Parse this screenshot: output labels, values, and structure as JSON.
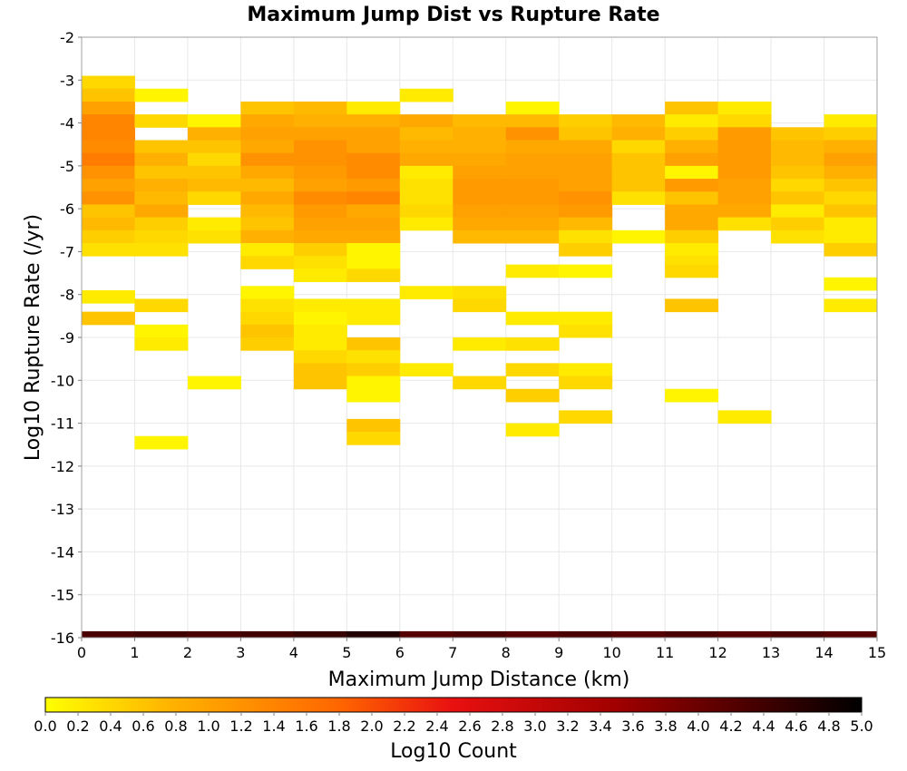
{
  "chart_data": {
    "type": "heatmap",
    "title": "Maximum Jump Dist vs Rupture Rate",
    "xlabel": "Maximum Jump Distance (km)",
    "ylabel": "Log10 Rupture Rate (/yr)",
    "colorbar_label": "Log10 Count",
    "xlim": [
      0,
      15
    ],
    "ylim": [
      -16,
      -2
    ],
    "x_ticks": [
      "0",
      "1",
      "2",
      "3",
      "4",
      "5",
      "6",
      "7",
      "8",
      "9",
      "10",
      "11",
      "12",
      "13",
      "14",
      "15"
    ],
    "y_ticks": [
      "-2",
      "-3",
      "-4",
      "-5",
      "-6",
      "-7",
      "-8",
      "-9",
      "-10",
      "-11",
      "-12",
      "-13",
      "-14",
      "-15",
      "-16"
    ],
    "colorbar_ticks": [
      "0.0",
      "0.2",
      "0.4",
      "0.6",
      "0.8",
      "1.0",
      "1.2",
      "1.4",
      "1.6",
      "1.8",
      "2.0",
      "2.2",
      "2.4",
      "2.6",
      "2.8",
      "3.0",
      "3.2",
      "3.4",
      "3.6",
      "3.8",
      "4.0",
      "4.2",
      "4.4",
      "4.6",
      "4.8",
      "5.0"
    ],
    "color_range": [
      0.0,
      5.0
    ],
    "colormap": [
      "#ffff00",
      "#ffb000",
      "#ff6600",
      "#e81010",
      "#a00000",
      "#400000",
      "#000000"
    ],
    "grid": true,
    "x_bin_width": 1,
    "y_bin_height": 0.3,
    "cells": [
      {
        "x": 0,
        "y": -3.05,
        "v": 0.4
      },
      {
        "x": 0,
        "y": -3.35,
        "v": 0.6
      },
      {
        "x": 0,
        "y": -3.65,
        "v": 1.0
      },
      {
        "x": 0,
        "y": -3.95,
        "v": 1.4
      },
      {
        "x": 0,
        "y": -4.25,
        "v": 1.4
      },
      {
        "x": 0,
        "y": -4.55,
        "v": 1.3
      },
      {
        "x": 0,
        "y": -4.85,
        "v": 1.5
      },
      {
        "x": 0,
        "y": -5.15,
        "v": 1.2
      },
      {
        "x": 0,
        "y": -5.45,
        "v": 1.0
      },
      {
        "x": 0,
        "y": -5.75,
        "v": 1.2
      },
      {
        "x": 0,
        "y": -6.05,
        "v": 0.6
      },
      {
        "x": 0,
        "y": -6.35,
        "v": 0.7
      },
      {
        "x": 0,
        "y": -6.65,
        "v": 0.5
      },
      {
        "x": 0,
        "y": -6.95,
        "v": 0.3
      },
      {
        "x": 0,
        "y": -8.05,
        "v": 0.2
      },
      {
        "x": 0,
        "y": -8.55,
        "v": 0.6
      },
      {
        "x": 1,
        "y": -3.35,
        "v": 0.1
      },
      {
        "x": 1,
        "y": -3.95,
        "v": 0.4
      },
      {
        "x": 1,
        "y": -4.55,
        "v": 0.6
      },
      {
        "x": 1,
        "y": -4.85,
        "v": 0.8
      },
      {
        "x": 1,
        "y": -5.15,
        "v": 0.6
      },
      {
        "x": 1,
        "y": -5.45,
        "v": 0.8
      },
      {
        "x": 1,
        "y": -5.75,
        "v": 0.7
      },
      {
        "x": 1,
        "y": -6.05,
        "v": 0.9
      },
      {
        "x": 1,
        "y": -6.35,
        "v": 0.5
      },
      {
        "x": 1,
        "y": -6.65,
        "v": 0.4
      },
      {
        "x": 1,
        "y": -6.95,
        "v": 0.3
      },
      {
        "x": 1,
        "y": -8.25,
        "v": 0.4
      },
      {
        "x": 1,
        "y": -8.85,
        "v": 0.1
      },
      {
        "x": 1,
        "y": -9.15,
        "v": 0.2
      },
      {
        "x": 1,
        "y": -11.45,
        "v": 0.1
      },
      {
        "x": 2,
        "y": -3.95,
        "v": 0.1
      },
      {
        "x": 2,
        "y": -4.25,
        "v": 0.8
      },
      {
        "x": 2,
        "y": -4.55,
        "v": 0.6
      },
      {
        "x": 2,
        "y": -4.85,
        "v": 0.4
      },
      {
        "x": 2,
        "y": -5.15,
        "v": 0.6
      },
      {
        "x": 2,
        "y": -5.45,
        "v": 0.7
      },
      {
        "x": 2,
        "y": -5.75,
        "v": 0.4
      },
      {
        "x": 2,
        "y": -6.35,
        "v": 0.2
      },
      {
        "x": 2,
        "y": -6.65,
        "v": 0.3
      },
      {
        "x": 2,
        "y": -10.05,
        "v": 0.1
      },
      {
        "x": 3,
        "y": -3.65,
        "v": 0.6
      },
      {
        "x": 3,
        "y": -3.95,
        "v": 0.9
      },
      {
        "x": 3,
        "y": -4.25,
        "v": 1.0
      },
      {
        "x": 3,
        "y": -4.55,
        "v": 0.9
      },
      {
        "x": 3,
        "y": -4.85,
        "v": 1.2
      },
      {
        "x": 3,
        "y": -5.15,
        "v": 0.9
      },
      {
        "x": 3,
        "y": -5.45,
        "v": 0.7
      },
      {
        "x": 3,
        "y": -5.75,
        "v": 0.9
      },
      {
        "x": 3,
        "y": -6.05,
        "v": 0.7
      },
      {
        "x": 3,
        "y": -6.35,
        "v": 0.6
      },
      {
        "x": 3,
        "y": -6.65,
        "v": 0.8
      },
      {
        "x": 3,
        "y": -6.95,
        "v": 0.2
      },
      {
        "x": 3,
        "y": -7.25,
        "v": 0.4
      },
      {
        "x": 3,
        "y": -7.95,
        "v": 0.1
      },
      {
        "x": 3,
        "y": -8.25,
        "v": 0.3
      },
      {
        "x": 3,
        "y": -8.55,
        "v": 0.4
      },
      {
        "x": 3,
        "y": -8.85,
        "v": 0.6
      },
      {
        "x": 3,
        "y": -9.15,
        "v": 0.5
      },
      {
        "x": 4,
        "y": -3.65,
        "v": 0.7
      },
      {
        "x": 4,
        "y": -3.95,
        "v": 0.8
      },
      {
        "x": 4,
        "y": -4.25,
        "v": 1.0
      },
      {
        "x": 4,
        "y": -4.55,
        "v": 1.2
      },
      {
        "x": 4,
        "y": -4.85,
        "v": 1.2
      },
      {
        "x": 4,
        "y": -5.15,
        "v": 1.1
      },
      {
        "x": 4,
        "y": -5.45,
        "v": 1.0
      },
      {
        "x": 4,
        "y": -5.75,
        "v": 1.3
      },
      {
        "x": 4,
        "y": -6.05,
        "v": 1.1
      },
      {
        "x": 4,
        "y": -6.35,
        "v": 1.0
      },
      {
        "x": 4,
        "y": -6.65,
        "v": 0.9
      },
      {
        "x": 4,
        "y": -6.95,
        "v": 0.5
      },
      {
        "x": 4,
        "y": -7.25,
        "v": 0.3
      },
      {
        "x": 4,
        "y": -7.55,
        "v": 0.2
      },
      {
        "x": 4,
        "y": -8.25,
        "v": 0.2
      },
      {
        "x": 4,
        "y": -8.55,
        "v": 0.1
      },
      {
        "x": 4,
        "y": -8.85,
        "v": 0.2
      },
      {
        "x": 4,
        "y": -9.15,
        "v": 0.2
      },
      {
        "x": 4,
        "y": -9.45,
        "v": 0.4
      },
      {
        "x": 4,
        "y": -9.75,
        "v": 0.6
      },
      {
        "x": 4,
        "y": -10.05,
        "v": 0.6
      },
      {
        "x": 5,
        "y": -3.65,
        "v": 0.2
      },
      {
        "x": 5,
        "y": -3.95,
        "v": 0.8
      },
      {
        "x": 5,
        "y": -4.25,
        "v": 1.0
      },
      {
        "x": 5,
        "y": -4.55,
        "v": 1.0
      },
      {
        "x": 5,
        "y": -4.85,
        "v": 1.3
      },
      {
        "x": 5,
        "y": -5.15,
        "v": 1.3
      },
      {
        "x": 5,
        "y": -5.45,
        "v": 1.1
      },
      {
        "x": 5,
        "y": -5.75,
        "v": 1.4
      },
      {
        "x": 5,
        "y": -6.05,
        "v": 0.9
      },
      {
        "x": 5,
        "y": -6.35,
        "v": 1.0
      },
      {
        "x": 5,
        "y": -6.65,
        "v": 0.9
      },
      {
        "x": 5,
        "y": -6.95,
        "v": 0.1
      },
      {
        "x": 5,
        "y": -7.25,
        "v": 0.1
      },
      {
        "x": 5,
        "y": -7.55,
        "v": 0.4
      },
      {
        "x": 5,
        "y": -8.25,
        "v": 0.2
      },
      {
        "x": 5,
        "y": -8.55,
        "v": 0.2
      },
      {
        "x": 5,
        "y": -9.15,
        "v": 0.6
      },
      {
        "x": 5,
        "y": -9.45,
        "v": 0.3
      },
      {
        "x": 5,
        "y": -9.75,
        "v": 0.5
      },
      {
        "x": 5,
        "y": -10.05,
        "v": 0.1
      },
      {
        "x": 5,
        "y": -10.35,
        "v": 0.1
      },
      {
        "x": 5,
        "y": -11.05,
        "v": 0.6
      },
      {
        "x": 5,
        "y": -11.35,
        "v": 0.4
      },
      {
        "x": 6,
        "y": -3.35,
        "v": 0.2
      },
      {
        "x": 6,
        "y": -3.95,
        "v": 0.9
      },
      {
        "x": 6,
        "y": -4.25,
        "v": 0.7
      },
      {
        "x": 6,
        "y": -4.55,
        "v": 0.8
      },
      {
        "x": 6,
        "y": -4.85,
        "v": 0.9
      },
      {
        "x": 6,
        "y": -5.15,
        "v": 0.2
      },
      {
        "x": 6,
        "y": -5.45,
        "v": 0.3
      },
      {
        "x": 6,
        "y": -5.75,
        "v": 0.3
      },
      {
        "x": 6,
        "y": -6.05,
        "v": 0.4
      },
      {
        "x": 6,
        "y": -6.35,
        "v": 0.2
      },
      {
        "x": 6,
        "y": -7.95,
        "v": 0.2
      },
      {
        "x": 6,
        "y": -9.75,
        "v": 0.2
      },
      {
        "x": 7,
        "y": -3.95,
        "v": 0.7
      },
      {
        "x": 7,
        "y": -4.25,
        "v": 0.8
      },
      {
        "x": 7,
        "y": -4.55,
        "v": 0.8
      },
      {
        "x": 7,
        "y": -4.85,
        "v": 0.9
      },
      {
        "x": 7,
        "y": -5.15,
        "v": 1.0
      },
      {
        "x": 7,
        "y": -5.45,
        "v": 1.1
      },
      {
        "x": 7,
        "y": -5.75,
        "v": 1.1
      },
      {
        "x": 7,
        "y": -6.05,
        "v": 1.0
      },
      {
        "x": 7,
        "y": -6.35,
        "v": 0.9
      },
      {
        "x": 7,
        "y": -6.65,
        "v": 0.7
      },
      {
        "x": 7,
        "y": -7.95,
        "v": 0.3
      },
      {
        "x": 7,
        "y": -8.25,
        "v": 0.4
      },
      {
        "x": 7,
        "y": -9.15,
        "v": 0.2
      },
      {
        "x": 7,
        "y": -10.05,
        "v": 0.4
      },
      {
        "x": 8,
        "y": -3.65,
        "v": 0.1
      },
      {
        "x": 8,
        "y": -3.95,
        "v": 0.7
      },
      {
        "x": 8,
        "y": -4.25,
        "v": 1.2
      },
      {
        "x": 8,
        "y": -4.55,
        "v": 0.9
      },
      {
        "x": 8,
        "y": -4.85,
        "v": 1.0
      },
      {
        "x": 8,
        "y": -5.15,
        "v": 1.0
      },
      {
        "x": 8,
        "y": -5.45,
        "v": 1.1
      },
      {
        "x": 8,
        "y": -5.75,
        "v": 1.1
      },
      {
        "x": 8,
        "y": -6.05,
        "v": 1.0
      },
      {
        "x": 8,
        "y": -6.35,
        "v": 0.9
      },
      {
        "x": 8,
        "y": -6.65,
        "v": 0.7
      },
      {
        "x": 8,
        "y": -7.45,
        "v": 0.2
      },
      {
        "x": 8,
        "y": -8.55,
        "v": 0.2
      },
      {
        "x": 8,
        "y": -9.15,
        "v": 0.3
      },
      {
        "x": 8,
        "y": -9.75,
        "v": 0.4
      },
      {
        "x": 8,
        "y": -10.35,
        "v": 0.5
      },
      {
        "x": 8,
        "y": -11.15,
        "v": 0.2
      },
      {
        "x": 9,
        "y": -3.95,
        "v": 0.5
      },
      {
        "x": 9,
        "y": -4.25,
        "v": 0.6
      },
      {
        "x": 9,
        "y": -4.55,
        "v": 0.9
      },
      {
        "x": 9,
        "y": -4.85,
        "v": 1.0
      },
      {
        "x": 9,
        "y": -5.15,
        "v": 1.0
      },
      {
        "x": 9,
        "y": -5.45,
        "v": 1.0
      },
      {
        "x": 9,
        "y": -5.75,
        "v": 1.2
      },
      {
        "x": 9,
        "y": -6.05,
        "v": 1.1
      },
      {
        "x": 9,
        "y": -6.35,
        "v": 0.7
      },
      {
        "x": 9,
        "y": -6.65,
        "v": 0.3
      },
      {
        "x": 9,
        "y": -6.95,
        "v": 0.5
      },
      {
        "x": 9,
        "y": -7.45,
        "v": 0.1
      },
      {
        "x": 9,
        "y": -8.55,
        "v": 0.2
      },
      {
        "x": 9,
        "y": -8.85,
        "v": 0.3
      },
      {
        "x": 9,
        "y": -9.75,
        "v": 0.2
      },
      {
        "x": 9,
        "y": -10.05,
        "v": 0.4
      },
      {
        "x": 9,
        "y": -10.85,
        "v": 0.4
      },
      {
        "x": 10,
        "y": -3.95,
        "v": 0.7
      },
      {
        "x": 10,
        "y": -4.25,
        "v": 0.8
      },
      {
        "x": 10,
        "y": -4.55,
        "v": 0.4
      },
      {
        "x": 10,
        "y": -4.85,
        "v": 0.6
      },
      {
        "x": 10,
        "y": -5.15,
        "v": 0.6
      },
      {
        "x": 10,
        "y": -5.45,
        "v": 0.6
      },
      {
        "x": 10,
        "y": -5.75,
        "v": 0.3
      },
      {
        "x": 10,
        "y": -6.65,
        "v": 0.1
      },
      {
        "x": 11,
        "y": -3.65,
        "v": 0.6
      },
      {
        "x": 11,
        "y": -3.95,
        "v": 0.2
      },
      {
        "x": 11,
        "y": -4.25,
        "v": 0.5
      },
      {
        "x": 11,
        "y": -4.55,
        "v": 0.8
      },
      {
        "x": 11,
        "y": -4.85,
        "v": 1.0
      },
      {
        "x": 11,
        "y": -5.15,
        "v": 0.1
      },
      {
        "x": 11,
        "y": -5.45,
        "v": 1.1
      },
      {
        "x": 11,
        "y": -5.75,
        "v": 0.6
      },
      {
        "x": 11,
        "y": -6.05,
        "v": 0.9
      },
      {
        "x": 11,
        "y": -6.35,
        "v": 0.9
      },
      {
        "x": 11,
        "y": -6.65,
        "v": 0.5
      },
      {
        "x": 11,
        "y": -6.95,
        "v": 0.2
      },
      {
        "x": 11,
        "y": -7.25,
        "v": 0.3
      },
      {
        "x": 11,
        "y": -7.45,
        "v": 0.4
      },
      {
        "x": 11,
        "y": -8.25,
        "v": 0.6
      },
      {
        "x": 11,
        "y": -10.35,
        "v": 0.1
      },
      {
        "x": 12,
        "y": -3.65,
        "v": 0.2
      },
      {
        "x": 12,
        "y": -3.95,
        "v": 0.4
      },
      {
        "x": 12,
        "y": -4.25,
        "v": 1.1
      },
      {
        "x": 12,
        "y": -4.55,
        "v": 1.1
      },
      {
        "x": 12,
        "y": -4.85,
        "v": 1.1
      },
      {
        "x": 12,
        "y": -5.15,
        "v": 1.1
      },
      {
        "x": 12,
        "y": -5.45,
        "v": 1.0
      },
      {
        "x": 12,
        "y": -5.75,
        "v": 1.0
      },
      {
        "x": 12,
        "y": -6.05,
        "v": 0.9
      },
      {
        "x": 12,
        "y": -6.35,
        "v": 0.3
      },
      {
        "x": 12,
        "y": -10.85,
        "v": 0.2
      },
      {
        "x": 13,
        "y": -4.25,
        "v": 0.6
      },
      {
        "x": 13,
        "y": -4.55,
        "v": 0.7
      },
      {
        "x": 13,
        "y": -4.85,
        "v": 0.7
      },
      {
        "x": 13,
        "y": -5.15,
        "v": 0.6
      },
      {
        "x": 13,
        "y": -5.45,
        "v": 0.4
      },
      {
        "x": 13,
        "y": -5.75,
        "v": 0.6
      },
      {
        "x": 13,
        "y": -6.05,
        "v": 0.2
      },
      {
        "x": 13,
        "y": -6.35,
        "v": 0.5
      },
      {
        "x": 13,
        "y": -6.65,
        "v": 0.3
      },
      {
        "x": 14,
        "y": -3.95,
        "v": 0.2
      },
      {
        "x": 14,
        "y": -4.25,
        "v": 0.5
      },
      {
        "x": 14,
        "y": -4.55,
        "v": 0.8
      },
      {
        "x": 14,
        "y": -4.85,
        "v": 1.0
      },
      {
        "x": 14,
        "y": -5.15,
        "v": 0.8
      },
      {
        "x": 14,
        "y": -5.45,
        "v": 0.6
      },
      {
        "x": 14,
        "y": -5.75,
        "v": 0.4
      },
      {
        "x": 14,
        "y": -6.05,
        "v": 0.6
      },
      {
        "x": 14,
        "y": -6.35,
        "v": 0.2
      },
      {
        "x": 14,
        "y": -6.65,
        "v": 0.2
      },
      {
        "x": 14,
        "y": -6.95,
        "v": 0.5
      },
      {
        "x": 14,
        "y": -7.75,
        "v": 0.1
      },
      {
        "x": 14,
        "y": -8.25,
        "v": 0.2
      }
    ],
    "bottom_row": {
      "y": -16,
      "values": [
        4.3,
        4.4,
        4.3,
        4.4,
        4.5,
        4.7,
        4.2,
        4.3,
        4.2,
        4.3,
        4.2,
        4.3,
        4.2,
        4.3,
        4.2
      ]
    }
  }
}
